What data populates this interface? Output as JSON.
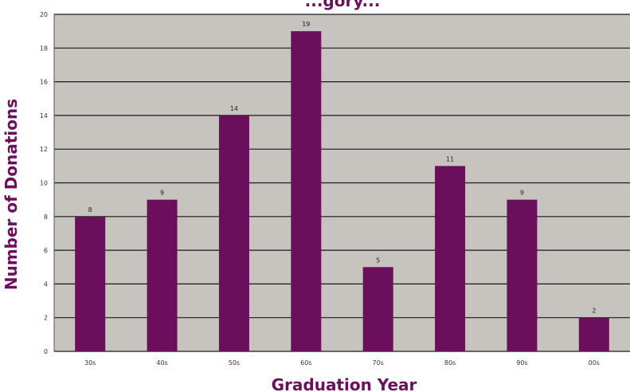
{
  "chart_data": {
    "type": "bar",
    "title": "...gory...",
    "xlabel": "Graduation Year",
    "ylabel": "Number of Donations",
    "categories": [
      "30s",
      "40s",
      "50s",
      "60s",
      "70s",
      "80s",
      "90s",
      "00s"
    ],
    "values": [
      8,
      9,
      14,
      19,
      5,
      11,
      9,
      2
    ],
    "data_labels": [
      "8",
      "9",
      "14",
      "19",
      "5",
      "11",
      "9",
      "2"
    ],
    "ylim": [
      0,
      20
    ],
    "yticks": [
      0,
      2,
      4,
      6,
      8,
      10,
      12,
      14,
      16,
      18,
      20
    ],
    "grid": true,
    "legend": "none"
  },
  "colors": {
    "bar": "#6b0f5c",
    "plot_background": "#c7c4c0",
    "gridline": "#1a1a1a",
    "axis_title": "#6b0f5c"
  }
}
